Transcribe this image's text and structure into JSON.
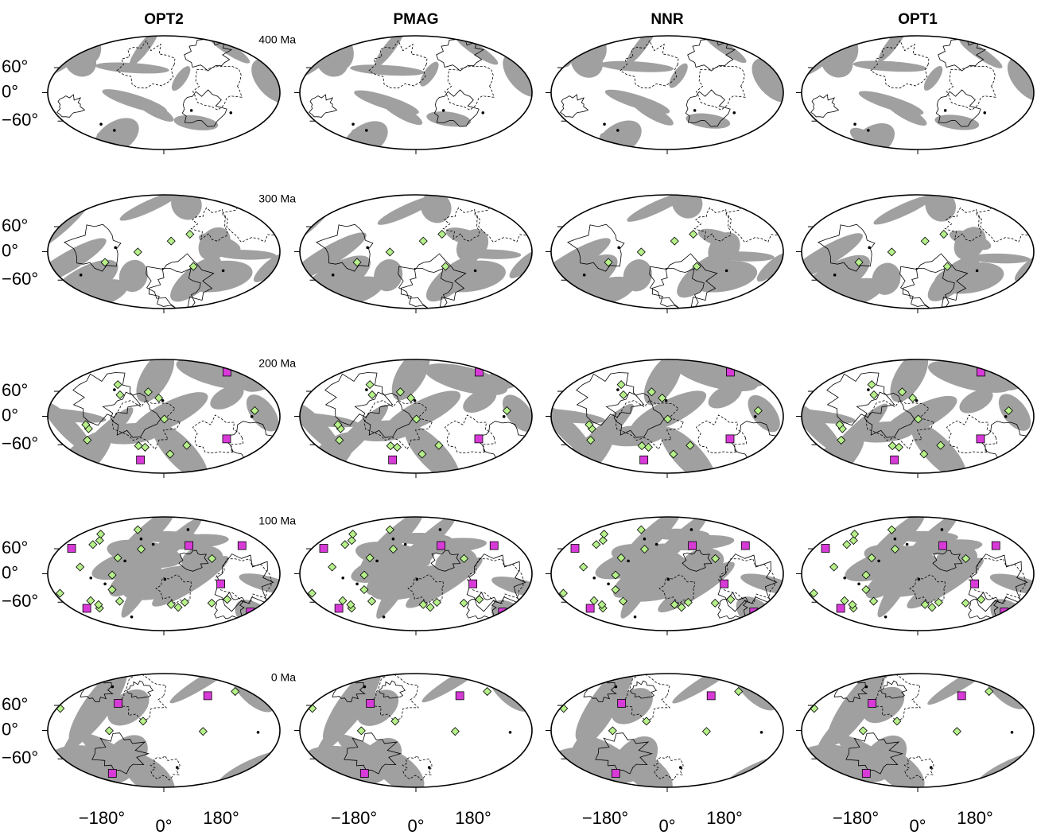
{
  "columns": [
    "OPT2",
    "PMAG",
    "NNR",
    "OPT1"
  ],
  "rows": [
    "400 Ma",
    "300 Ma",
    "200 Ma",
    "100 Ma",
    "0 Ma"
  ],
  "y_axis_labels": [
    "60°",
    "0°",
    "−60°"
  ],
  "x_axis_labels": [
    "−180°",
    "0°",
    "180°"
  ]
}
